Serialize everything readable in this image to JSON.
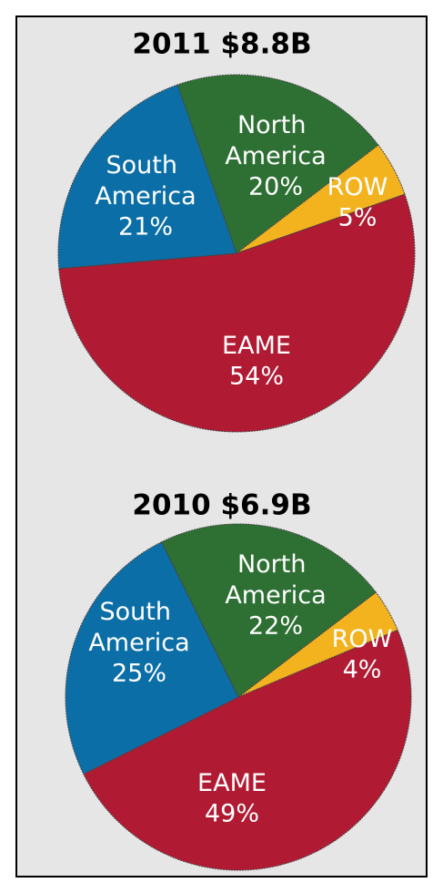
{
  "chart_data": [
    {
      "type": "pie",
      "title": "2011 $8.8B",
      "categories": [
        "North America",
        "ROW",
        "EAME",
        "South America"
      ],
      "values": [
        20,
        5,
        54,
        21
      ],
      "value_labels": [
        "20%",
        "5%",
        "54%",
        "21%"
      ],
      "colors": [
        "#2e7034",
        "#f3b31f",
        "#b11a33",
        "#0b6ea6"
      ]
    },
    {
      "type": "pie",
      "title": "2010 $6.9B",
      "categories": [
        "North America",
        "ROW",
        "EAME",
        "South America"
      ],
      "values": [
        22,
        4,
        49,
        25
      ],
      "value_labels": [
        "22%",
        "4%",
        "49%",
        "25%"
      ],
      "colors": [
        "#2e7034",
        "#f3b31f",
        "#b11a33",
        "#0b6ea6"
      ]
    }
  ]
}
